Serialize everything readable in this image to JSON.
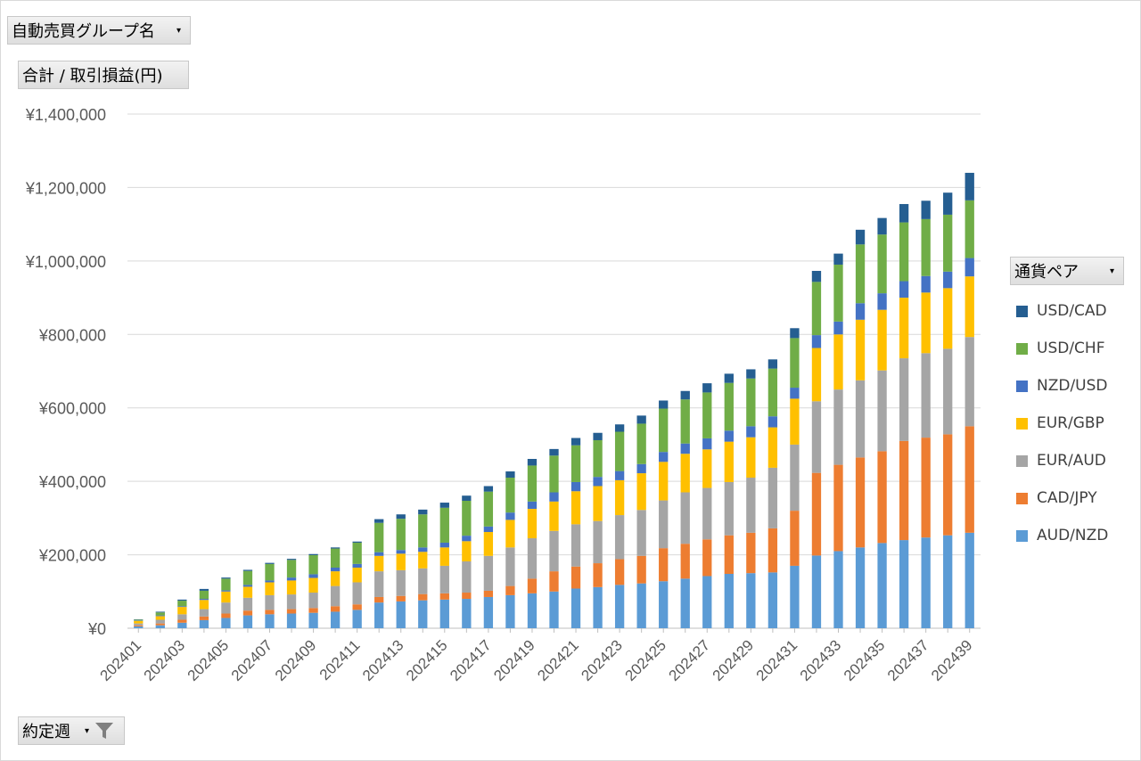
{
  "filters": {
    "group_label": "自動売買グループ名",
    "measure_label": "合計 / 取引損益(円)",
    "week_label": "約定週",
    "legend_label": "通貨ペア"
  },
  "colors": {
    "AUD/NZD": "#5b9bd5",
    "CAD/JPY": "#ed7d31",
    "EUR/AUD": "#a5a5a5",
    "EUR/GBP": "#ffc000",
    "NZD/USD": "#4472c4",
    "USD/CHF": "#70ad47",
    "USD/CAD": "#255e91"
  },
  "chart_data": {
    "type": "bar",
    "stacked": true,
    "ylabel": "合計 / 取引損益(円)",
    "xlabel": "約定週",
    "ylim": [
      0,
      1400000
    ],
    "yticks": [
      "¥0",
      "¥200,000",
      "¥400,000",
      "¥600,000",
      "¥800,000",
      "¥1,000,000",
      "¥1,200,000",
      "¥1,400,000"
    ],
    "categories": [
      "202401",
      "202402",
      "202403",
      "202404",
      "202405",
      "202406",
      "202407",
      "202408",
      "202409",
      "202410",
      "202411",
      "202412",
      "202413",
      "202414",
      "202415",
      "202416",
      "202417",
      "202418",
      "202419",
      "202420",
      "202421",
      "202422",
      "202423",
      "202424",
      "202425",
      "202426",
      "202427",
      "202428",
      "202429",
      "202430",
      "202431",
      "202432",
      "202433",
      "202434",
      "202435",
      "202436",
      "202437",
      "202438",
      "202439"
    ],
    "x_tick_labels": [
      "202401",
      "202403",
      "202405",
      "202407",
      "202409",
      "202411",
      "202413",
      "202415",
      "202417",
      "202419",
      "202421",
      "202423",
      "202425",
      "202427",
      "202429",
      "202431",
      "202433",
      "202435",
      "202437",
      "202439"
    ],
    "legend_order": [
      "USD/CAD",
      "USD/CHF",
      "NZD/USD",
      "EUR/GBP",
      "EUR/AUD",
      "CAD/JPY",
      "AUD/NZD"
    ],
    "series": [
      {
        "name": "AUD/NZD",
        "values": [
          5000,
          8000,
          15000,
          22000,
          28000,
          35000,
          38000,
          40000,
          42000,
          45000,
          50000,
          70000,
          73000,
          76000,
          78000,
          80000,
          85000,
          90000,
          95000,
          100000,
          108000,
          112000,
          118000,
          122000,
          128000,
          135000,
          142000,
          148000,
          150000,
          152000,
          170000,
          198000,
          210000,
          220000,
          232000,
          240000,
          247000,
          253000,
          260000
        ]
      },
      {
        "name": "CAD/JPY",
        "values": [
          3000,
          5000,
          8000,
          10000,
          12000,
          13000,
          12000,
          12000,
          13000,
          15000,
          15000,
          15000,
          15000,
          17000,
          17000,
          17000,
          17000,
          25000,
          40000,
          55000,
          60000,
          65000,
          70000,
          75000,
          90000,
          95000,
          100000,
          105000,
          110000,
          120000,
          150000,
          225000,
          235000,
          245000,
          250000,
          270000,
          272000,
          275000,
          290000
        ]
      },
      {
        "name": "EUR/AUD",
        "values": [
          5000,
          10000,
          15000,
          20000,
          30000,
          35000,
          40000,
          40000,
          42000,
          55000,
          60000,
          70000,
          70000,
          70000,
          75000,
          85000,
          95000,
          105000,
          110000,
          110000,
          115000,
          115000,
          120000,
          125000,
          130000,
          140000,
          140000,
          145000,
          150000,
          165000,
          180000,
          195000,
          205000,
          210000,
          220000,
          225000,
          230000,
          233000,
          243000
        ]
      },
      {
        "name": "EUR/GBP",
        "values": [
          7000,
          10000,
          20000,
          25000,
          30000,
          30000,
          35000,
          38000,
          40000,
          40000,
          40000,
          42000,
          45000,
          45000,
          50000,
          55000,
          65000,
          75000,
          80000,
          80000,
          90000,
          95000,
          95000,
          100000,
          105000,
          105000,
          105000,
          110000,
          110000,
          110000,
          125000,
          145000,
          150000,
          165000,
          165000,
          165000,
          165000,
          165000,
          165000
        ]
      },
      {
        "name": "NZD/USD",
        "values": [
          1000,
          2000,
          2000,
          3000,
          3000,
          5000,
          5000,
          8000,
          10000,
          10000,
          10000,
          10000,
          10000,
          12000,
          13000,
          15000,
          15000,
          20000,
          20000,
          25000,
          25000,
          25000,
          25000,
          25000,
          27000,
          28000,
          30000,
          30000,
          30000,
          30000,
          30000,
          35000,
          35000,
          45000,
          45000,
          45000,
          45000,
          45000,
          50000
        ]
      },
      {
        "name": "USD/CHF",
        "values": [
          2000,
          8000,
          15000,
          22000,
          32000,
          38000,
          45000,
          48000,
          52000,
          52000,
          58000,
          80000,
          85000,
          90000,
          95000,
          95000,
          95000,
          95000,
          98000,
          100000,
          100000,
          100000,
          107000,
          110000,
          118000,
          120000,
          125000,
          130000,
          130000,
          130000,
          135000,
          145000,
          155000,
          160000,
          160000,
          160000,
          155000,
          155000,
          157000
        ]
      },
      {
        "name": "USD/CAD",
        "values": [
          1000,
          2000,
          3000,
          5000,
          3000,
          3000,
          3000,
          3000,
          3000,
          3000,
          3000,
          10000,
          12000,
          13000,
          14000,
          14000,
          15000,
          17000,
          18000,
          18000,
          20000,
          20000,
          20000,
          22000,
          22000,
          23000,
          25000,
          25000,
          25000,
          25000,
          27000,
          30000,
          30000,
          40000,
          45000,
          50000,
          50000,
          60000,
          75000
        ]
      }
    ]
  }
}
